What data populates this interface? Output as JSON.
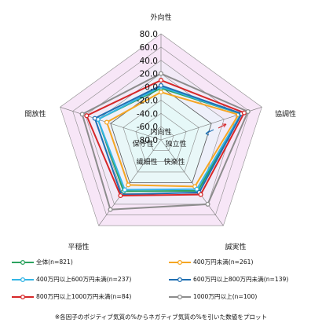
{
  "chart_data": {
    "type": "radar",
    "axes": [
      "外向性",
      "協調性",
      "誠実性",
      "平穏性",
      "開放性"
    ],
    "inner_axes": [
      "内向性",
      "独立性",
      "快楽性",
      "繊細性",
      "保守性"
    ],
    "rlim": [
      -80,
      80
    ],
    "ticks": [
      "80.0",
      "60.0",
      "40.0",
      "20.0",
      "0.0",
      "-20.0",
      "-40.0",
      "-60.0",
      "-80.0"
    ],
    "tick_values": [
      80,
      60,
      40,
      20,
      0,
      -20,
      -40,
      -60,
      -80
    ],
    "series": [
      {
        "name": "全体(n=821)",
        "color": "#2ca25f",
        "values": [
          -2,
          47,
          15,
          16,
          20
        ]
      },
      {
        "name": "400万円未満(n=261)",
        "color": "#f5a623",
        "values": [
          -8,
          43,
          7,
          4,
          6
        ]
      },
      {
        "name": "400万円以上600万円未満(n=237)",
        "color": "#33b5e5",
        "values": [
          0,
          47,
          12,
          13,
          20
        ]
      },
      {
        "name": "600万円以上800万円未満(n=139)",
        "color": "#1f6fb2",
        "values": [
          2,
          48,
          18,
          22,
          25
        ]
      },
      {
        "name": "800万円以上1000万円未満(n=84)",
        "color": "#d62728",
        "values": [
          10,
          52,
          22,
          24,
          38
        ]
      },
      {
        "name": "1000万円以上(n=100)",
        "color": "#8c8c8c",
        "values": [
          20,
          58,
          40,
          50,
          45
        ]
      }
    ]
  },
  "footnote": "※各因子のポジティブ気質の%からネガティブ気質の%を引いた数値をプロット"
}
